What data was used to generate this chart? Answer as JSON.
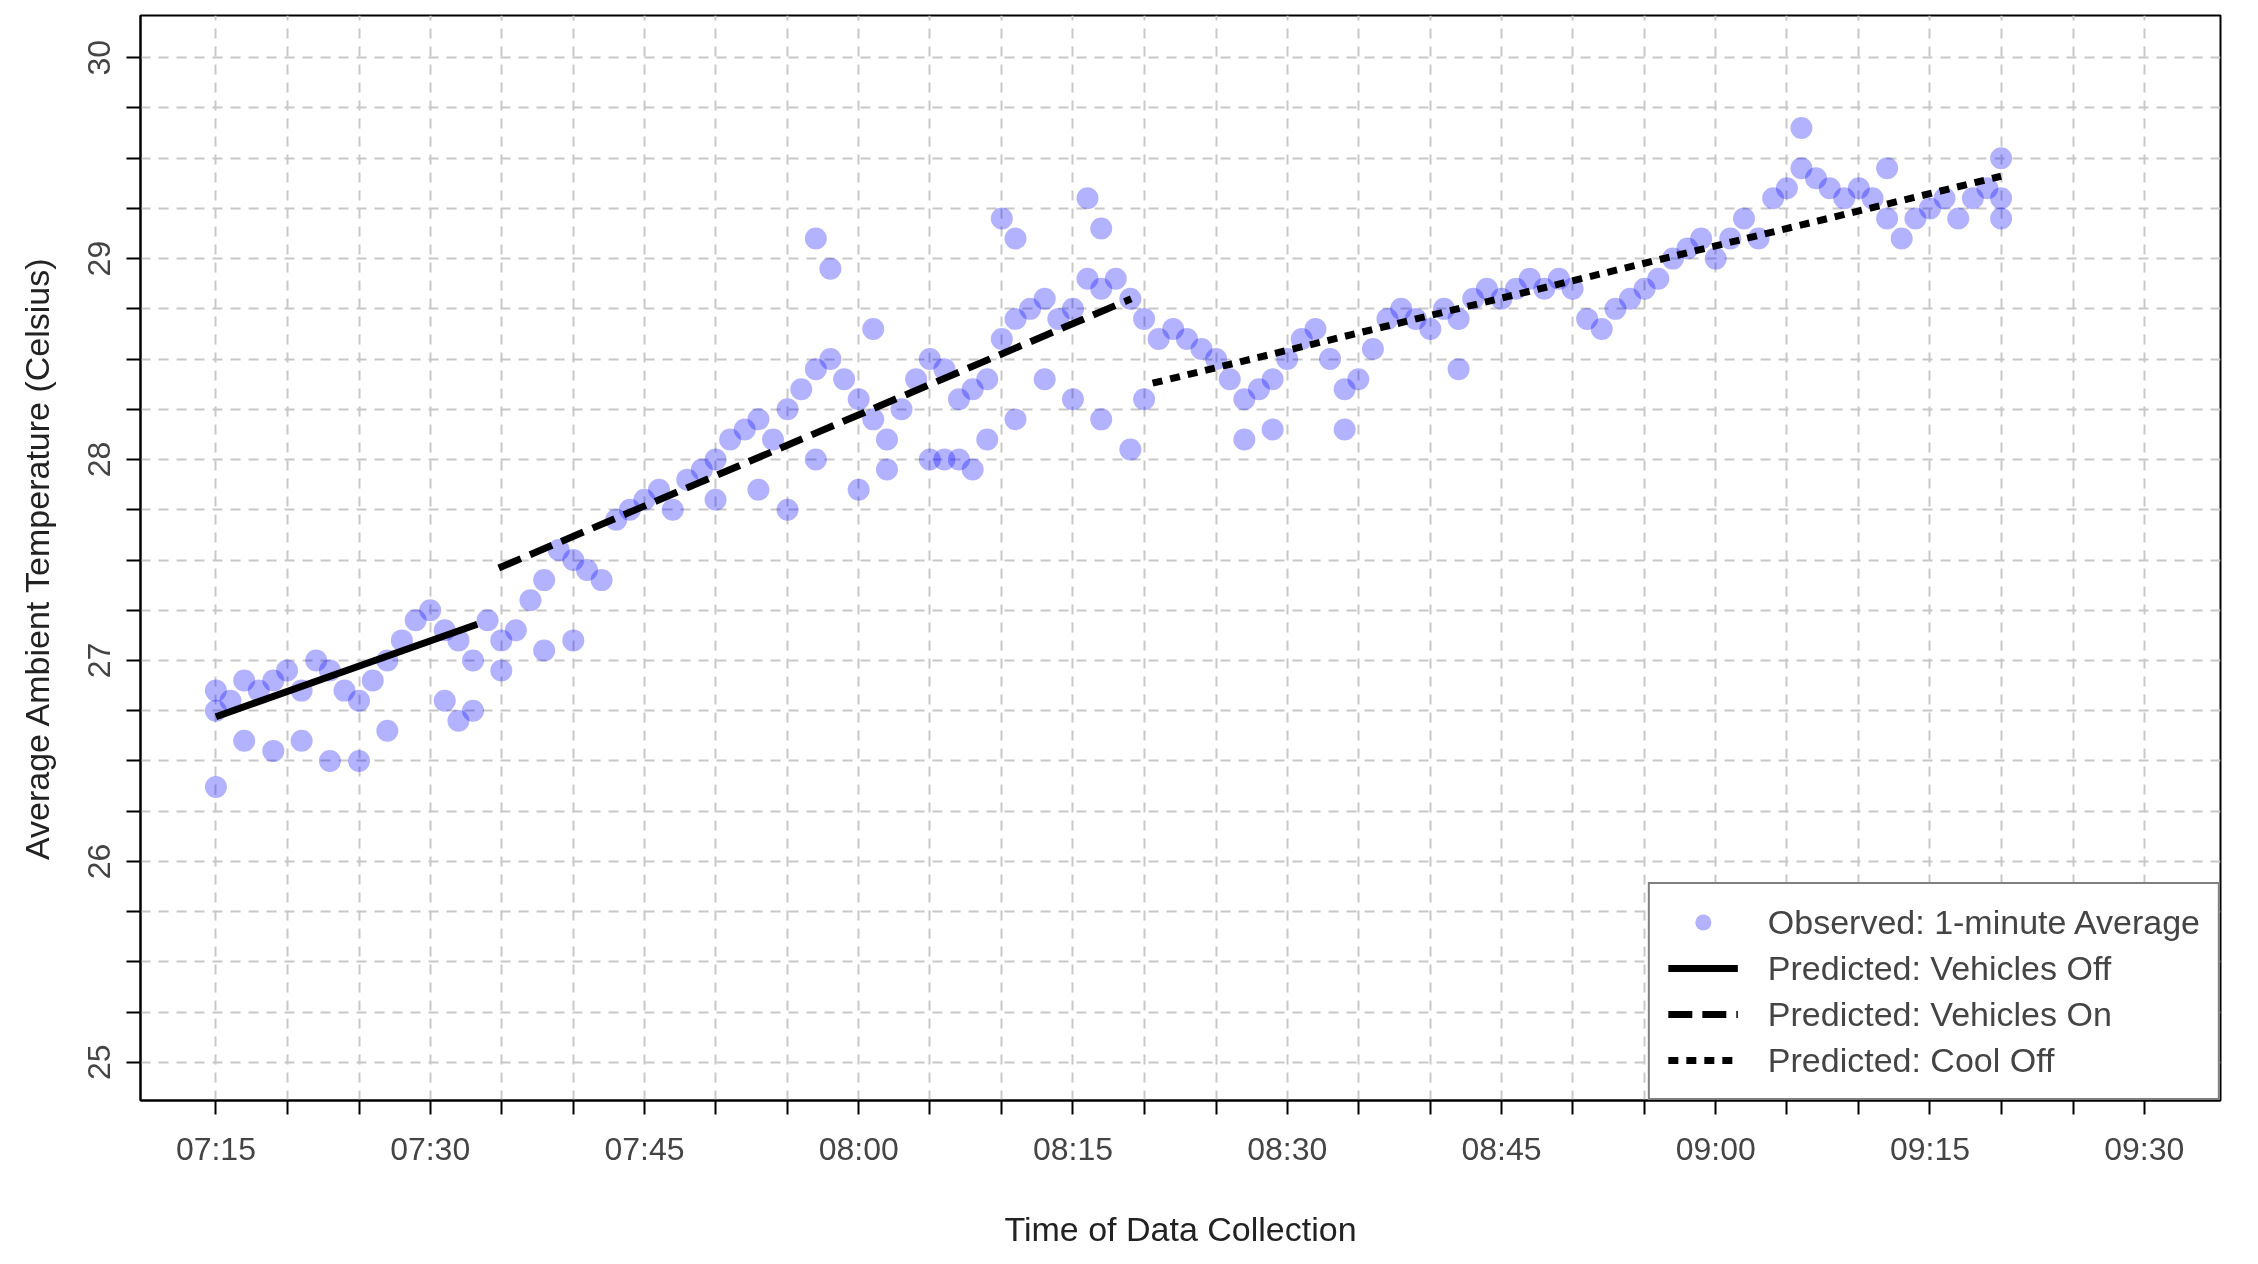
{
  "chart_data": {
    "type": "scatter",
    "xlabel": "Time of Data Collection",
    "ylabel": "Average Ambient Temperature (Celsius)",
    "xlim": [
      7.162,
      9.589
    ],
    "ylim": [
      24.81,
      30.21
    ],
    "xticks": [
      {
        "value": 7.25,
        "label": "07:15"
      },
      {
        "value": 7.333,
        "label": null
      },
      {
        "value": 7.417,
        "label": null
      },
      {
        "value": 7.5,
        "label": "07:30"
      },
      {
        "value": 7.583,
        "label": null
      },
      {
        "value": 7.667,
        "label": null
      },
      {
        "value": 7.75,
        "label": "07:45"
      },
      {
        "value": 7.833,
        "label": null
      },
      {
        "value": 7.917,
        "label": null
      },
      {
        "value": 8.0,
        "label": "08:00"
      },
      {
        "value": 8.083,
        "label": null
      },
      {
        "value": 8.167,
        "label": null
      },
      {
        "value": 8.25,
        "label": "08:15"
      },
      {
        "value": 8.333,
        "label": null
      },
      {
        "value": 8.417,
        "label": null
      },
      {
        "value": 8.5,
        "label": "08:30"
      },
      {
        "value": 8.583,
        "label": null
      },
      {
        "value": 8.667,
        "label": null
      },
      {
        "value": 8.75,
        "label": "08:45"
      },
      {
        "value": 8.833,
        "label": null
      },
      {
        "value": 8.917,
        "label": null
      },
      {
        "value": 9.0,
        "label": "09:00"
      },
      {
        "value": 9.083,
        "label": null
      },
      {
        "value": 9.167,
        "label": null
      },
      {
        "value": 9.25,
        "label": "09:15"
      },
      {
        "value": 9.333,
        "label": null
      },
      {
        "value": 9.417,
        "label": null
      },
      {
        "value": 9.5,
        "label": "09:30"
      }
    ],
    "yticks": [
      25,
      {
        "value": 25.25,
        "label": null
      },
      {
        "value": 25.5,
        "label": null
      },
      {
        "value": 25.75,
        "label": null
      },
      26,
      {
        "value": 26.25,
        "label": null
      },
      {
        "value": 26.5,
        "label": null
      },
      {
        "value": 26.75,
        "label": null
      },
      27,
      {
        "value": 27.25,
        "label": null
      },
      {
        "value": 27.5,
        "label": null
      },
      {
        "value": 27.75,
        "label": null
      },
      28,
      {
        "value": 28.25,
        "label": null
      },
      {
        "value": 28.5,
        "label": null
      },
      {
        "value": 28.75,
        "label": null
      },
      29,
      {
        "value": 29.25,
        "label": null
      },
      {
        "value": 29.5,
        "label": null
      },
      {
        "value": 29.75,
        "label": null
      },
      30
    ],
    "grid": true,
    "legend": "bottom right",
    "series": [
      {
        "name": "Observed: 1-minute Average",
        "marker": "circle",
        "color": "#0000ff",
        "x": [
          7.25,
          7.25,
          7.25,
          7.267,
          7.283,
          7.283,
          7.3,
          7.317,
          7.317,
          7.333,
          7.35,
          7.35,
          7.367,
          7.383,
          7.383,
          7.4,
          7.417,
          7.417,
          7.433,
          7.45,
          7.45,
          7.467,
          7.483,
          7.5,
          7.517,
          7.517,
          7.533,
          7.533,
          7.55,
          7.55,
          7.567,
          7.583,
          7.583,
          7.6,
          7.617,
          7.633,
          7.633,
          7.65,
          7.667,
          7.667,
          7.683,
          7.7,
          7.717,
          7.733,
          7.75,
          7.767,
          7.783,
          7.8,
          7.817,
          7.833,
          7.833,
          7.85,
          7.867,
          7.883,
          7.883,
          7.9,
          7.917,
          7.917,
          7.933,
          7.95,
          7.95,
          7.95,
          7.967,
          7.967,
          7.983,
          8.0,
          8.0,
          8.017,
          8.017,
          8.033,
          8.033,
          8.05,
          8.067,
          8.083,
          8.083,
          8.1,
          8.1,
          8.117,
          8.117,
          8.133,
          8.133,
          8.15,
          8.15,
          8.167,
          8.167,
          8.183,
          8.183,
          8.183,
          8.2,
          8.217,
          8.217,
          8.233,
          8.25,
          8.25,
          8.267,
          8.267,
          8.283,
          8.283,
          8.283,
          8.3,
          8.317,
          8.317,
          8.333,
          8.333,
          8.35,
          8.367,
          8.383,
          8.4,
          8.417,
          8.433,
          8.45,
          8.45,
          8.467,
          8.483,
          8.483,
          8.5,
          8.517,
          8.533,
          8.55,
          8.567,
          8.567,
          8.583,
          8.6,
          8.617,
          8.633,
          8.65,
          8.667,
          8.683,
          8.7,
          8.7,
          8.717,
          8.733,
          8.75,
          8.767,
          8.783,
          8.8,
          8.817,
          8.833,
          8.85,
          8.867,
          8.883,
          8.9,
          8.917,
          8.933,
          8.95,
          8.967,
          8.983,
          9.0,
          9.017,
          9.033,
          9.05,
          9.067,
          9.083,
          9.1,
          9.1,
          9.117,
          9.133,
          9.15,
          9.167,
          9.183,
          9.2,
          9.2,
          9.217,
          9.233,
          9.25,
          9.267,
          9.283,
          9.3,
          9.317,
          9.333,
          9.333,
          9.333
        ],
        "values": [
          26.75,
          26.37,
          26.85,
          26.8,
          26.9,
          26.6,
          26.85,
          26.9,
          26.55,
          26.95,
          26.85,
          26.6,
          27.0,
          26.95,
          26.5,
          26.85,
          26.8,
          26.5,
          26.9,
          27.0,
          26.65,
          27.1,
          27.2,
          27.25,
          27.15,
          26.8,
          27.1,
          26.7,
          27.0,
          26.75,
          27.2,
          27.1,
          26.95,
          27.15,
          27.3,
          27.4,
          27.05,
          27.55,
          27.5,
          27.1,
          27.45,
          27.4,
          27.7,
          27.75,
          27.8,
          27.85,
          27.75,
          27.9,
          27.95,
          28.0,
          27.8,
          28.1,
          28.15,
          28.2,
          27.85,
          28.1,
          28.25,
          27.75,
          28.35,
          28.45,
          29.1,
          28.0,
          28.5,
          28.95,
          28.4,
          28.3,
          27.85,
          28.2,
          28.65,
          28.1,
          27.95,
          28.25,
          28.4,
          28.5,
          28.0,
          28.45,
          28.0,
          28.3,
          28.0,
          28.35,
          27.95,
          28.4,
          28.1,
          28.6,
          29.2,
          28.7,
          29.1,
          28.2,
          28.75,
          28.8,
          28.4,
          28.7,
          28.75,
          28.3,
          28.9,
          29.3,
          28.85,
          29.15,
          28.2,
          28.9,
          28.8,
          28.05,
          28.7,
          28.3,
          28.6,
          28.65,
          28.6,
          28.55,
          28.5,
          28.4,
          28.3,
          28.1,
          28.35,
          28.4,
          28.15,
          28.5,
          28.6,
          28.65,
          28.5,
          28.35,
          28.15,
          28.4,
          28.55,
          28.7,
          28.75,
          28.7,
          28.65,
          28.75,
          28.7,
          28.45,
          28.8,
          28.85,
          28.8,
          28.85,
          28.9,
          28.85,
          28.9,
          28.85,
          28.7,
          28.65,
          28.75,
          28.8,
          28.85,
          28.9,
          29.0,
          29.05,
          29.1,
          29.0,
          29.1,
          29.2,
          29.1,
          29.3,
          29.35,
          29.45,
          29.65,
          29.4,
          29.35,
          29.3,
          29.35,
          29.3,
          29.2,
          29.45,
          29.1,
          29.2,
          29.25,
          29.3,
          29.2,
          29.3,
          29.35,
          29.3,
          29.5,
          29.2
        ]
      },
      {
        "name": "Predicted: Vehicles Off",
        "type": "line",
        "line_style": "solid",
        "color": "#000000",
        "x": [
          7.25,
          7.555
        ],
        "values": [
          26.72,
          27.18
        ]
      },
      {
        "name": "Predicted: Vehicles On",
        "type": "line",
        "line_style": "dashed",
        "color": "#000000",
        "x": [
          7.58,
          8.318
        ],
        "values": [
          27.46,
          28.8
        ]
      },
      {
        "name": "Predicted: Cool Off",
        "type": "line",
        "line_style": "dotted",
        "color": "#000000",
        "x": [
          8.343,
          9.333
        ],
        "values": [
          28.38,
          29.41
        ]
      }
    ]
  }
}
